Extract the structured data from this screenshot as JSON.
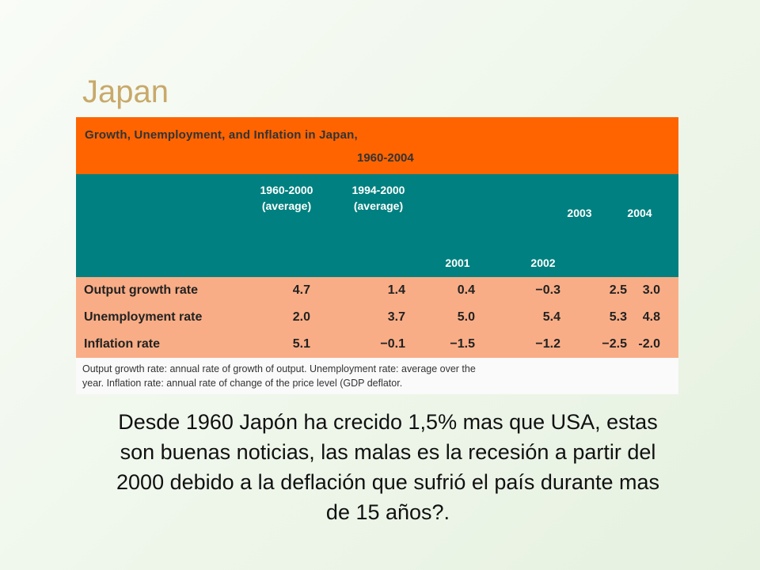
{
  "slide": {
    "title": "Japan"
  },
  "table": {
    "title_line1": "Growth, Unemployment, and Inflation in Japan,",
    "title_line2": "1960-2004",
    "columns": [
      {
        "line1": "1960-2000",
        "line2": "(average)"
      },
      {
        "line1": "1994-2000",
        "line2": "(average)"
      },
      {
        "line1": "2001",
        "line2": ""
      },
      {
        "line1": "2002",
        "line2": ""
      },
      {
        "line1": "2003",
        "line2": ""
      },
      {
        "line1": "2004",
        "line2": ""
      }
    ],
    "rows": [
      {
        "label": "Output growth rate",
        "values": [
          "4.7",
          "1.4",
          "0.4",
          "−0.3",
          "2.5",
          "3.0"
        ]
      },
      {
        "label": "Unemployment rate",
        "values": [
          "2.0",
          "3.7",
          "5.0",
          "5.4",
          "5.3",
          "4.8"
        ]
      },
      {
        "label": "Inflation rate",
        "values": [
          "5.1",
          "−0.1",
          "−1.5",
          "−1.2",
          "−2.5",
          "-2.0"
        ]
      }
    ],
    "note_line1": "Output growth rate:   annual rate of growth of output.  Unemployment rate:  average over the",
    "note_line2": "year.   Inflation rate:   annual rate of change of the price level (GDP deflator."
  },
  "colors": {
    "title_band": "#ff6400",
    "header_band": "#008080",
    "rows_band": "#f9ad86",
    "slide_title": "#c8a96a"
  },
  "caption": "Desde 1960 Japón ha crecido 1,5% mas que USA, estas son buenas noticias, las malas es la recesión a partir del 2000 debido a la deflación que sufrió el país durante mas de 15 años?."
}
